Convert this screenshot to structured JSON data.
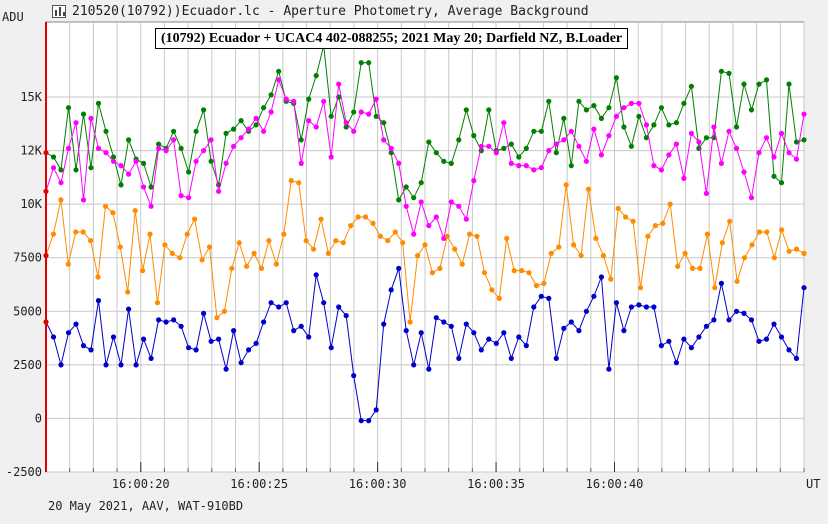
{
  "window": {
    "title": "210520(10792))Ecuador.lc - Aperture Photometry, Average Background",
    "footer": "20 May 2021, AAV, WAT-910BD"
  },
  "chart_data": {
    "type": "line",
    "title": "(10792) Ecuador + UCAC4 402-088255; 2021 May 20; Darfield NZ, B.Loader",
    "ylabel": "ADU",
    "xlabel": "UT",
    "ylim": [
      -2500,
      18500
    ],
    "xlim": [
      16.0,
      48.0
    ],
    "y_ticks": [
      {
        "value": -2500,
        "label": "-2500"
      },
      {
        "value": 0,
        "label": "0"
      },
      {
        "value": 2500,
        "label": "2500"
      },
      {
        "value": 5000,
        "label": "5000"
      },
      {
        "value": 7500,
        "label": "7500"
      },
      {
        "value": 10000,
        "label": "10K"
      },
      {
        "value": 12500,
        "label": "12K"
      },
      {
        "value": 15000,
        "label": "15K"
      }
    ],
    "x_ticks": [
      {
        "value": 20,
        "label": "16:00:20"
      },
      {
        "value": 25,
        "label": "16:00:25"
      },
      {
        "value": 30,
        "label": "16:00:30"
      },
      {
        "value": 35,
        "label": "16:00:35"
      },
      {
        "value": 40,
        "label": "16:00:40"
      }
    ],
    "grid": true,
    "colors": {
      "plot_bg": "#ffffff",
      "grid": "#c8c8c8",
      "left_axis": "#e00000",
      "green": "#008000",
      "magenta": "#ff00ff",
      "orange": "#ff8c00",
      "blue": "#0000cc"
    },
    "series": [
      {
        "color": "#008000",
        "values": [
          12400,
          12200,
          11600,
          14500,
          11600,
          14200,
          11700,
          14700,
          13400,
          12200,
          10900,
          13000,
          12100,
          11900,
          10800,
          12800,
          12600,
          13400,
          12600,
          11500,
          13400,
          14400,
          12000,
          10900,
          13300,
          13500,
          13900,
          13400,
          13700,
          14500,
          15100,
          16200,
          14800,
          14700,
          13000,
          14900,
          16000,
          17400,
          14100,
          15000,
          13600,
          14300,
          16600,
          16600,
          14100,
          13800,
          12400,
          10200,
          10800,
          10300,
          11000,
          12900,
          12400,
          12000,
          11900,
          13000,
          14400,
          13200,
          12500,
          14400,
          12500,
          12600,
          12800,
          12200,
          12600,
          13400,
          13400,
          14800,
          12400,
          14000,
          11800,
          14800,
          14400,
          14600,
          14000,
          14500,
          15900,
          13600,
          12700,
          14100,
          13100,
          13700,
          14500,
          13700,
          13800,
          14700,
          15500,
          12600,
          13100,
          13100,
          16200,
          16100,
          13600,
          15600,
          14400,
          15600,
          15800,
          11300,
          11000,
          15600,
          12900,
          13000
        ]
      },
      {
        "color": "#ff00ff",
        "values": [
          10600,
          11700,
          11000,
          12600,
          13800,
          10200,
          14000,
          12600,
          12400,
          12000,
          11800,
          11400,
          12000,
          10800,
          9900,
          12600,
          12500,
          13000,
          10400,
          10300,
          12000,
          12500,
          13000,
          10600,
          11900,
          12700,
          13100,
          13500,
          14000,
          13400,
          14300,
          15800,
          14900,
          14800,
          11900,
          13900,
          13600,
          14800,
          12200,
          15600,
          13800,
          13400,
          14300,
          14200,
          14900,
          13000,
          12600,
          11900,
          9900,
          8600,
          10100,
          9000,
          9400,
          8400,
          10100,
          9900,
          9300,
          11100,
          12700,
          12700,
          12400,
          13800,
          11900,
          11800,
          11800,
          11600,
          11700,
          12500,
          12800,
          13000,
          13400,
          12700,
          12000,
          13500,
          12300,
          13200,
          14100,
          14500,
          14700,
          14700,
          13700,
          11800,
          11600,
          12300,
          12800,
          11200,
          13300,
          12900,
          10500,
          13600,
          11900,
          13400,
          12600,
          11500,
          10300,
          12400,
          13100,
          12200,
          13300,
          12400,
          12100,
          14200
        ]
      },
      {
        "color": "#ff8c00",
        "values": [
          7600,
          8600,
          10200,
          7200,
          8700,
          8700,
          8300,
          6600,
          9900,
          9600,
          8000,
          5900,
          9700,
          6900,
          8600,
          5400,
          8100,
          7700,
          7500,
          8600,
          9300,
          7400,
          8000,
          4700,
          5000,
          7000,
          8200,
          7100,
          7700,
          7000,
          8300,
          7200,
          8600,
          11100,
          11000,
          8300,
          7900,
          9300,
          7700,
          8300,
          8200,
          9000,
          9400,
          9400,
          9100,
          8500,
          8300,
          8700,
          8200,
          4500,
          7600,
          8100,
          6800,
          7000,
          8500,
          7900,
          7200,
          8600,
          8500,
          6800,
          6000,
          5600,
          8400,
          6900,
          6900,
          6800,
          6200,
          6300,
          7700,
          8000,
          10900,
          8100,
          7600,
          10700,
          8400,
          7600,
          6500,
          9800,
          9400,
          9200,
          6100,
          8500,
          9000,
          9100,
          10000,
          7100,
          7700,
          7000,
          7000,
          8600,
          6100,
          8200,
          9200,
          6400,
          7500,
          8100,
          8700,
          8700,
          7500,
          8800,
          7800,
          7900,
          7700
        ]
      },
      {
        "color": "#0000cc",
        "values": [
          4500,
          3800,
          2500,
          4000,
          4400,
          3400,
          3200,
          5500,
          2500,
          3800,
          2500,
          5100,
          2500,
          3700,
          2800,
          4600,
          4500,
          4600,
          4300,
          3300,
          3200,
          4900,
          3600,
          3700,
          2300,
          4100,
          2600,
          3200,
          3500,
          4500,
          5400,
          5200,
          5400,
          4100,
          4300,
          3800,
          6700,
          5400,
          3300,
          5200,
          4800,
          2000,
          -100,
          -100,
          400,
          4400,
          6000,
          7000,
          4100,
          2500,
          4000,
          2300,
          4700,
          4500,
          4300,
          2800,
          4400,
          4000,
          3200,
          3700,
          3500,
          4000,
          2800,
          3800,
          3400,
          5200,
          5700,
          5600,
          2800,
          4200,
          4500,
          4100,
          5000,
          5700,
          6600,
          2300,
          5400,
          4100,
          5200,
          5300,
          5200,
          5200,
          3400,
          3600,
          2600,
          3700,
          3300,
          3800,
          4300,
          4600,
          6300,
          4600,
          5000,
          4900,
          4600,
          3600,
          3700,
          4400,
          3800,
          3200,
          2800,
          6100
        ]
      }
    ]
  }
}
